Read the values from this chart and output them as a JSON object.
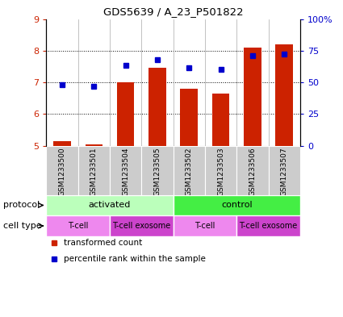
{
  "title": "GDS5639 / A_23_P501822",
  "samples": [
    "GSM1233500",
    "GSM1233501",
    "GSM1233504",
    "GSM1233505",
    "GSM1233502",
    "GSM1233503",
    "GSM1233506",
    "GSM1233507"
  ],
  "bar_values": [
    5.15,
    5.05,
    7.0,
    7.45,
    6.8,
    6.65,
    8.1,
    8.2
  ],
  "dot_values": [
    6.93,
    6.87,
    7.54,
    7.72,
    7.45,
    7.4,
    7.85,
    7.9
  ],
  "bar_color": "#cc2200",
  "dot_color": "#0000cc",
  "ylim": [
    5,
    9
  ],
  "yticks_left": [
    5,
    6,
    7,
    8,
    9
  ],
  "yticks_right": [
    0,
    25,
    50,
    75,
    100
  ],
  "bar_bottom": 5.0,
  "protocol_activated_color": "#bbffbb",
  "protocol_control_color": "#44ee44",
  "cell_tcell_color": "#ee88ee",
  "cell_exosome_color": "#cc44cc",
  "sample_bg_color": "#cccccc",
  "protocol_groups": [
    {
      "label": "activated",
      "start": 0,
      "end": 4
    },
    {
      "label": "control",
      "start": 4,
      "end": 8
    }
  ],
  "celltype_groups": [
    {
      "label": "T-cell",
      "start": 0,
      "end": 2,
      "color": "#ee88ee"
    },
    {
      "label": "T-cell exosome",
      "start": 2,
      "end": 4,
      "color": "#cc44cc"
    },
    {
      "label": "T-cell",
      "start": 4,
      "end": 6,
      "color": "#ee88ee"
    },
    {
      "label": "T-cell exosome",
      "start": 6,
      "end": 8,
      "color": "#cc44cc"
    }
  ],
  "legend_red": "transformed count",
  "legend_blue": "percentile rank within the sample"
}
